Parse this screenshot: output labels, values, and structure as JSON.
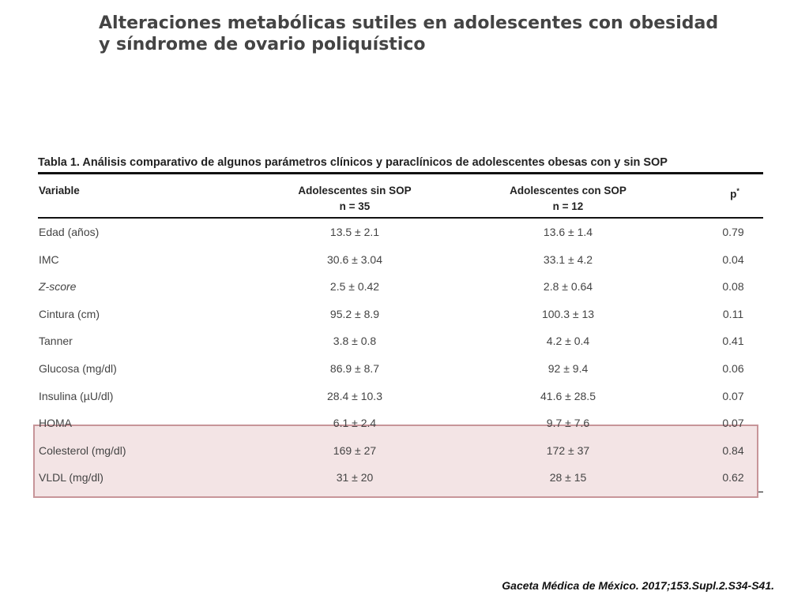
{
  "title": {
    "line1": "Alteraciones metabólicas sutiles en adolescentes con obesidad",
    "line2": "y síndrome de ovario poliquístico"
  },
  "table": {
    "caption": "Tabla 1. Análisis comparativo de algunos parámetros clínicos y paraclínicos de adolescentes obesas con y sin SOP",
    "headers": {
      "variable": "Variable",
      "sin_sop": "Adolescentes sin SOP",
      "sin_sop_n": "n = 35",
      "con_sop": "Adolescentes con SOP",
      "con_sop_n": "n = 12",
      "p": "p",
      "p_mark": "*"
    },
    "rows": [
      {
        "variable": "Edad (años)",
        "sin_sop": "13.5 ± 2.1",
        "con_sop": "13.6 ± 1.4",
        "p": "0.79"
      },
      {
        "variable": "IMC",
        "sin_sop": "30.6 ± 3.04",
        "con_sop": "33.1 ± 4.2",
        "p": "0.04"
      },
      {
        "variable": "Z-score",
        "sin_sop": "2.5 ± 0.42",
        "con_sop": "2.8 ± 0.64",
        "p": "0.08"
      },
      {
        "variable": "Cintura (cm)",
        "sin_sop": "95.2 ± 8.9",
        "con_sop": "100.3 ± 13",
        "p": "0.11"
      },
      {
        "variable": "Tanner",
        "sin_sop": "3.8 ± 0.8",
        "con_sop": "4.2 ± 0.4",
        "p": "0.41"
      },
      {
        "variable": "Glucosa (mg/dl)",
        "sin_sop": "86.9 ± 8.7",
        "con_sop": "92 ± 9.4",
        "p": "0.06"
      },
      {
        "variable": "Insulina (µU/dl)",
        "sin_sop": "28.4 ± 10.3",
        "con_sop": "41.6 ± 28.5",
        "p": "0.07"
      },
      {
        "variable": "HOMA",
        "sin_sop": "6.1 ± 2.4",
        "con_sop": "9.7 ± 7.6",
        "p": "0.07"
      },
      {
        "variable": "Colesterol (mg/dl)",
        "sin_sop": "169 ± 27",
        "con_sop": "172 ± 37",
        "p": "0.84"
      },
      {
        "variable": "VLDL (mg/dl)",
        "sin_sop": "31 ± 20",
        "con_sop": "28 ± 15",
        "p": "0.62"
      }
    ],
    "highlight_color": "#f3e4e5",
    "highlight_border": "#c79599"
  },
  "citation": "Gaceta Médica de México. 2017;153.Supl.2.S34-S41."
}
